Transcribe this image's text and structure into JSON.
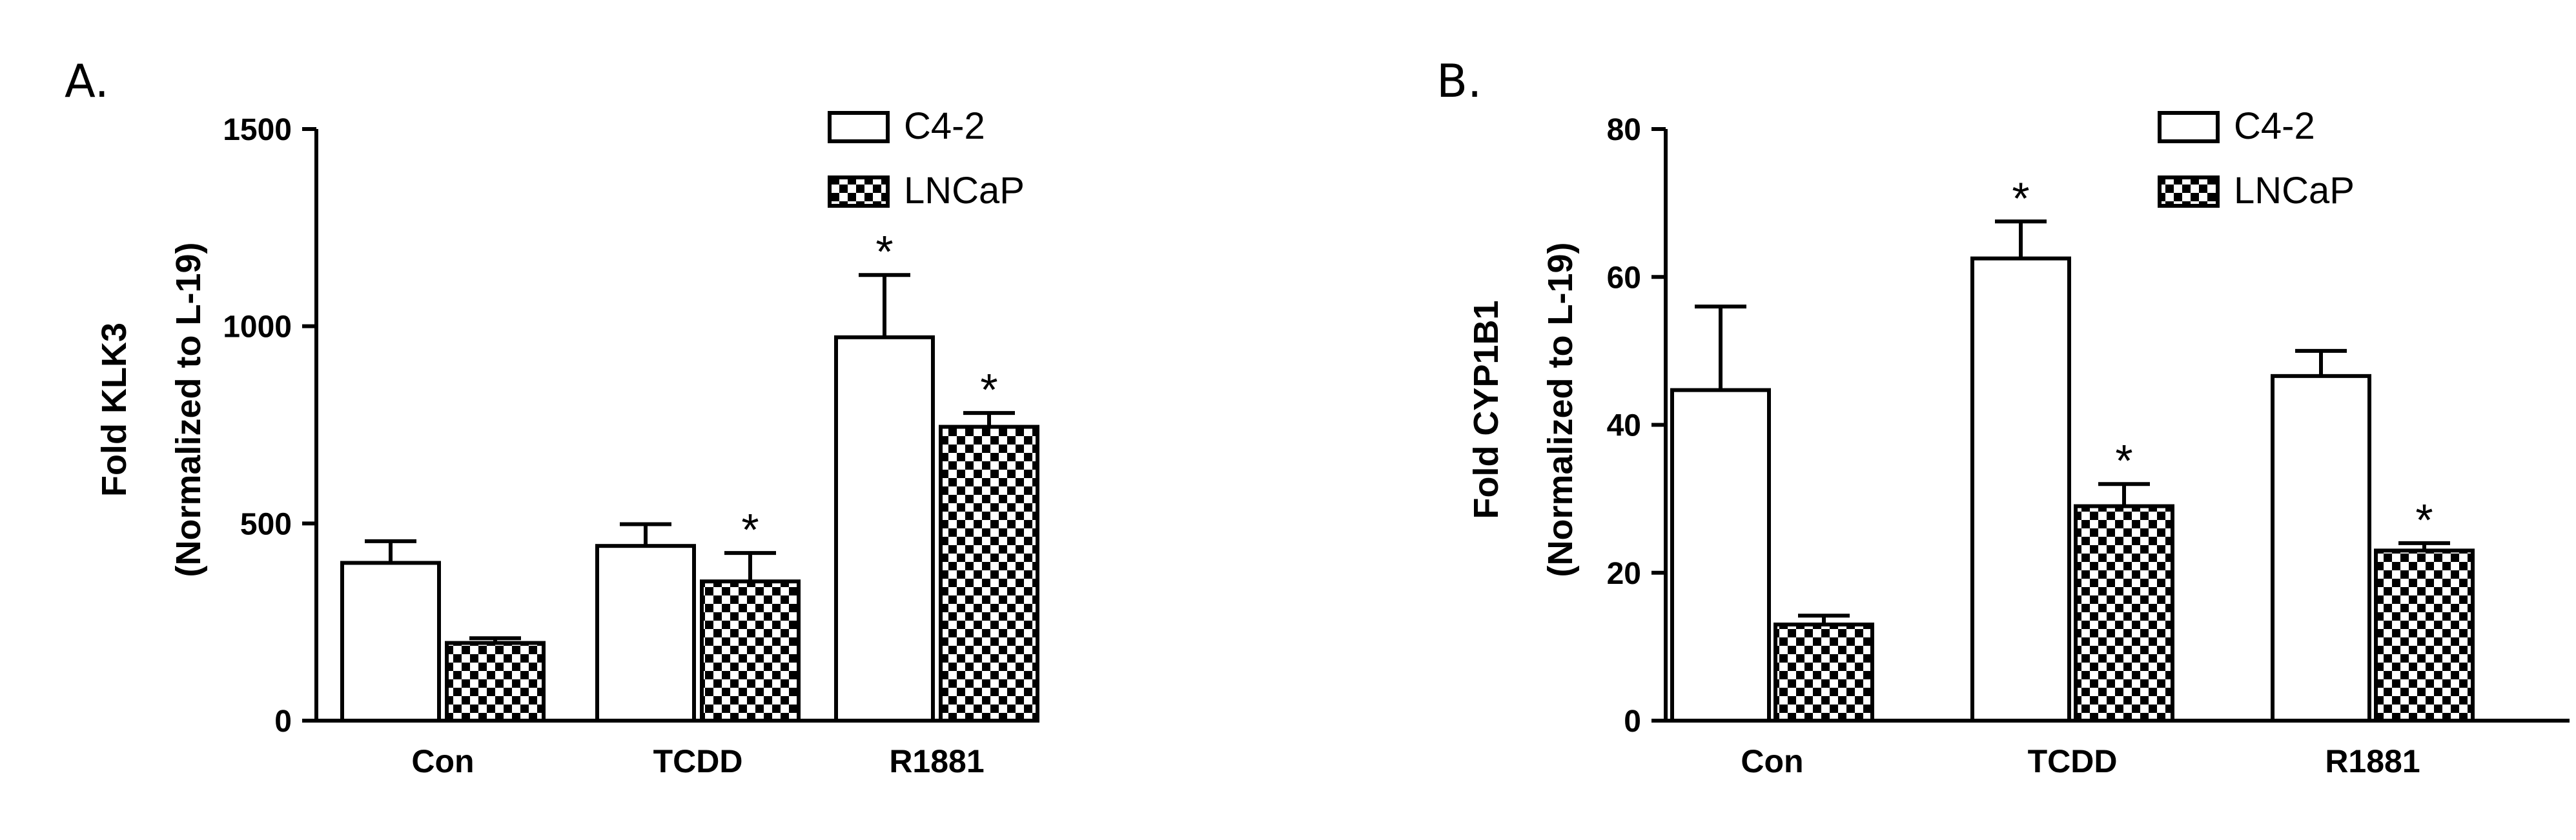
{
  "colors": {
    "ink": "#000000",
    "background": "#ffffff",
    "checker": "#000000"
  },
  "chart_data": [
    {
      "type": "bar",
      "panel": "A.",
      "ylabel": "Fold KLK3",
      "ylabel2": "(Normalized to L-19)",
      "ylim": [
        0,
        1500
      ],
      "yticks": [
        "0",
        "500",
        "1000",
        "1500"
      ],
      "categories": [
        "Con",
        "TCDD",
        "R1881"
      ],
      "series": [
        {
          "name": "C4-2",
          "pattern": "open",
          "values": [
            400,
            443,
            972
          ],
          "errors": [
            55,
            55,
            158
          ],
          "significance": [
            "",
            "",
            "*"
          ]
        },
        {
          "name": "LNCaP",
          "pattern": "checker",
          "values": [
            197,
            353,
            745
          ],
          "errors": [
            12,
            72,
            35
          ],
          "significance": [
            "",
            "*",
            "*"
          ]
        }
      ],
      "legend": "top-right"
    },
    {
      "type": "bar",
      "panel": "B.",
      "ylabel": "Fold CYP1B1",
      "ylabel2": "(Normalized to L-19)",
      "ylim": [
        0,
        80
      ],
      "yticks": [
        "0",
        "20",
        "40",
        "60",
        "80"
      ],
      "categories": [
        "Con",
        "TCDD",
        "R1881"
      ],
      "series": [
        {
          "name": "C4-2",
          "pattern": "open",
          "values": [
            44.7,
            62.5,
            46.6
          ],
          "errors": [
            11.3,
            5.0,
            3.4
          ],
          "significance": [
            "",
            "*",
            ""
          ]
        },
        {
          "name": "LNCaP",
          "pattern": "checker",
          "values": [
            13.0,
            29.0,
            23.0
          ],
          "errors": [
            1.2,
            3.0,
            1.0
          ],
          "significance": [
            "",
            "*",
            "*"
          ]
        }
      ],
      "legend": "top-right"
    }
  ]
}
